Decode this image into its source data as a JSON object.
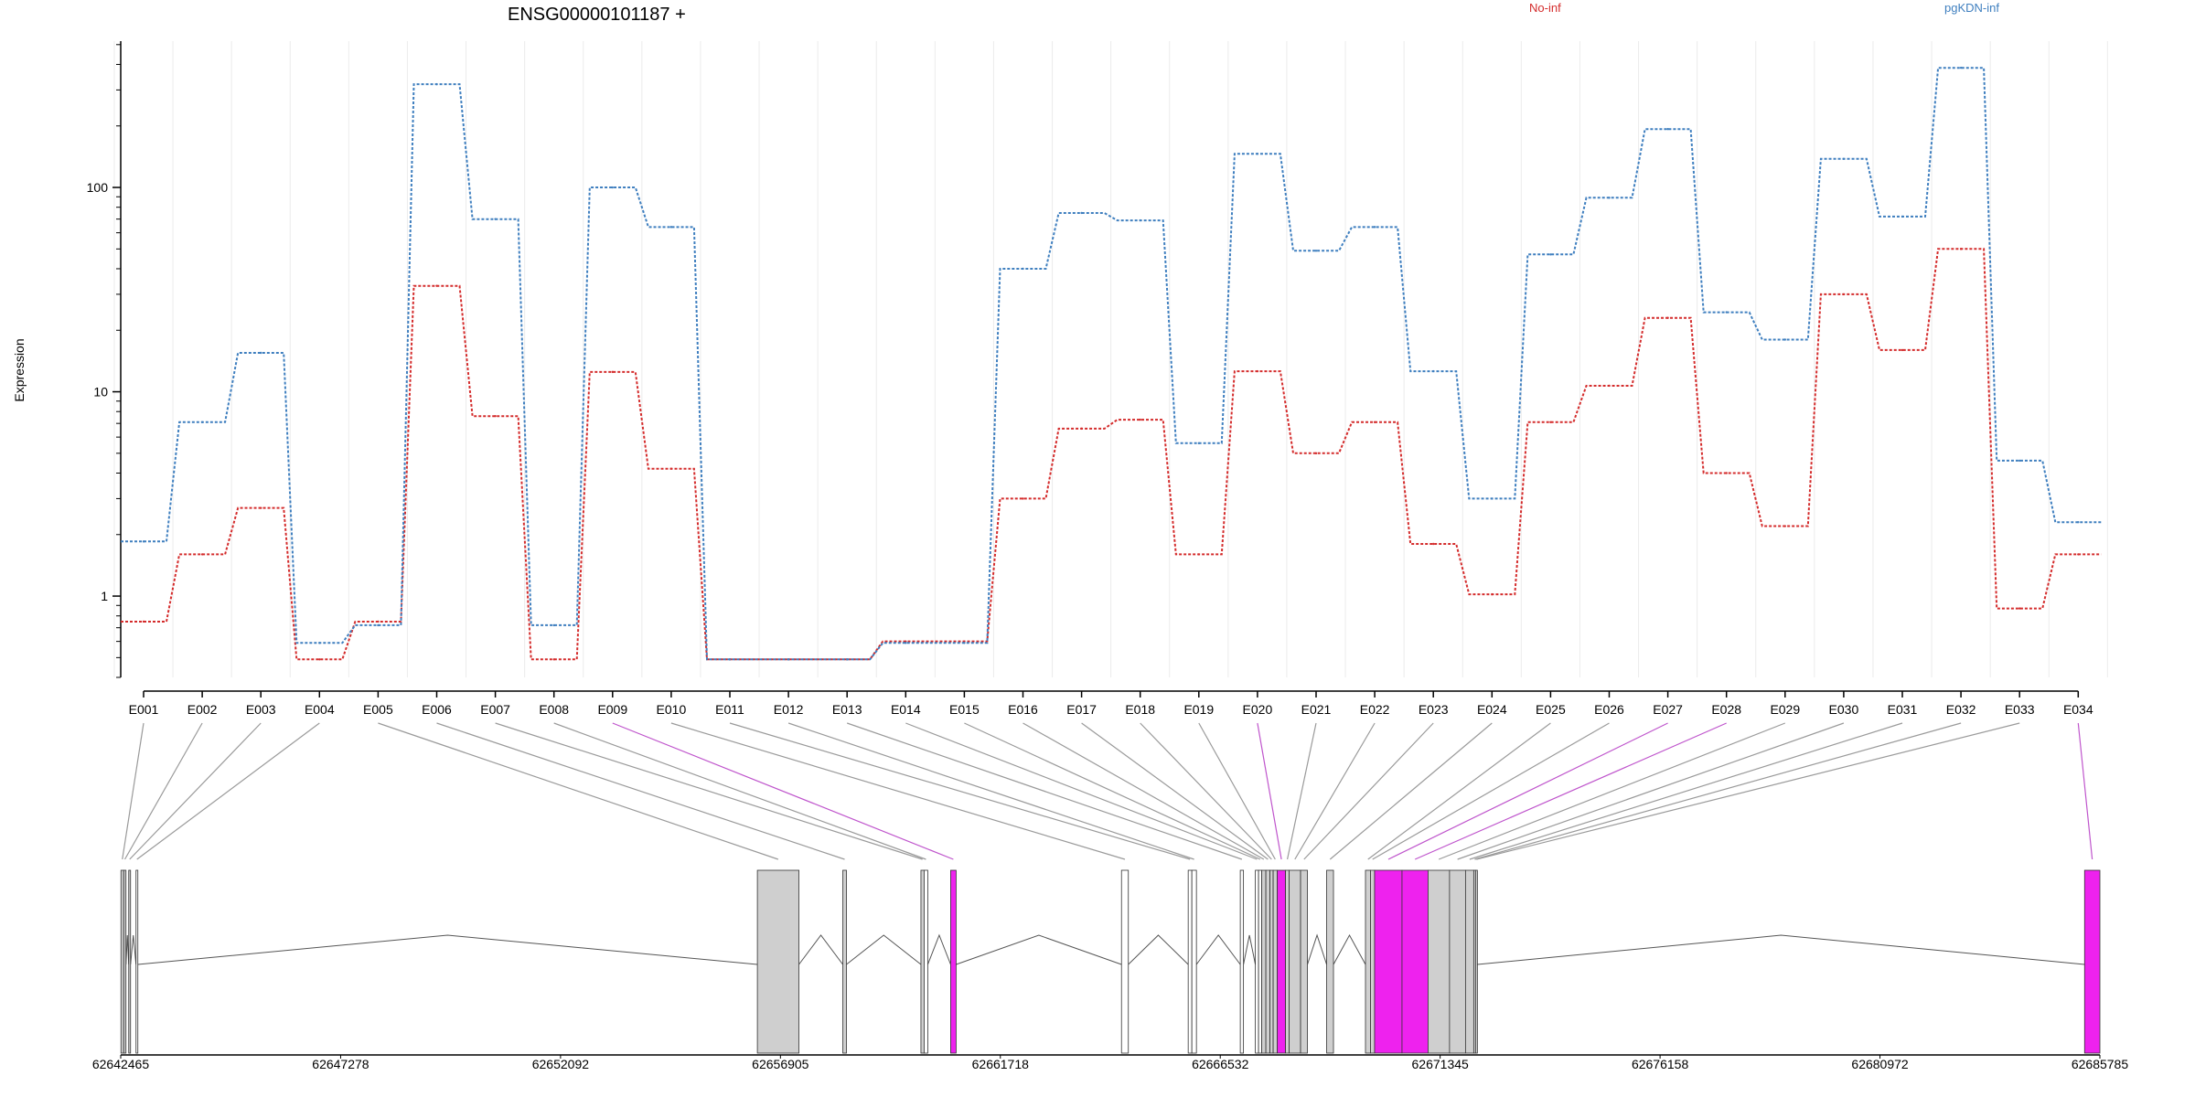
{
  "chart_data": {
    "type": "line",
    "title": "ENSG00000101187 +",
    "ylabel": "Expression",
    "yscale": "log",
    "ylim": [
      0.4,
      520
    ],
    "yticks": [
      {
        "value": 1,
        "label": "1"
      },
      {
        "value": 10,
        "label": "10"
      },
      {
        "value": 100,
        "label": "100"
      }
    ],
    "grid": "vertical",
    "legend_placement": "top-right",
    "categories": [
      "E001",
      "E002",
      "E003",
      "E004",
      "E005",
      "E006",
      "E007",
      "E008",
      "E009",
      "E010",
      "E011",
      "E012",
      "E013",
      "E014",
      "E015",
      "E016",
      "E017",
      "E018",
      "E019",
      "E020",
      "E021",
      "E022",
      "E023",
      "E024",
      "E025",
      "E026",
      "E027",
      "E028",
      "E029",
      "E030",
      "E031",
      "E032",
      "E033",
      "E034"
    ],
    "series": [
      {
        "name": "No-inf",
        "color": "#d42c2c",
        "values": [
          0.75,
          1.6,
          2.7,
          0.49,
          0.75,
          33,
          7.6,
          0.49,
          12.5,
          4.2,
          0.49,
          0.49,
          0.49,
          0.6,
          0.6,
          3.0,
          6.6,
          7.3,
          1.6,
          12.6,
          5.0,
          7.1,
          1.8,
          1.02,
          7.1,
          10.7,
          23,
          4.0,
          2.2,
          30,
          16,
          50,
          0.87,
          1.6
        ]
      },
      {
        "name": "pgKDN-inf",
        "color": "#3f7fbf",
        "values": [
          1.85,
          7.1,
          15.5,
          0.59,
          0.72,
          320,
          70,
          0.72,
          100,
          64,
          0.49,
          0.49,
          0.49,
          0.59,
          0.59,
          40,
          75,
          69,
          5.6,
          146,
          49,
          64,
          12.6,
          3.0,
          47,
          89,
          193,
          24.5,
          18,
          138,
          72,
          385,
          4.6,
          2.3
        ]
      }
    ],
    "gene_model": {
      "xlim": [
        62642465,
        62685785
      ],
      "tick_labels": [
        "62642465",
        "62647278",
        "62652092",
        "62656905",
        "62661718",
        "62666532",
        "62671345",
        "62676158",
        "62680972",
        "62685785"
      ],
      "exons": [
        {
          "id": "E001",
          "start": 62642470,
          "end": 62642530,
          "highlight": false,
          "fill": "#cfcfcf"
        },
        {
          "id": "E002",
          "start": 62642530,
          "end": 62642580,
          "highlight": false,
          "fill": "#cfcfcf"
        },
        {
          "id": "E003",
          "start": 62642640,
          "end": 62642680,
          "highlight": false,
          "fill": "#cfcfcf"
        },
        {
          "id": "E004",
          "start": 62642800,
          "end": 62642840,
          "highlight": false,
          "fill": "#ffffff"
        },
        {
          "id": "E005",
          "start": 62656400,
          "end": 62657310,
          "highlight": false,
          "fill": "#cfcfcf"
        },
        {
          "id": "E006",
          "start": 62658270,
          "end": 62658350,
          "highlight": false,
          "fill": "#cfcfcf"
        },
        {
          "id": "E007",
          "start": 62659980,
          "end": 62660050,
          "highlight": false,
          "fill": "#cfcfcf"
        },
        {
          "id": "E008",
          "start": 62660050,
          "end": 62660130,
          "highlight": false,
          "fill": "#ffffff"
        },
        {
          "id": "E009",
          "start": 62660630,
          "end": 62660750,
          "highlight": true,
          "fill": "#ee22ee"
        },
        {
          "id": "E010",
          "start": 62664370,
          "end": 62664520,
          "highlight": false,
          "fill": "#ffffff"
        },
        {
          "id": "E011",
          "start": 62665830,
          "end": 62665910,
          "highlight": false,
          "fill": "#ffffff"
        },
        {
          "id": "E012",
          "start": 62665910,
          "end": 62666010,
          "highlight": false,
          "fill": "#ffffff"
        },
        {
          "id": "E013",
          "start": 62666970,
          "end": 62667040,
          "highlight": false,
          "fill": "#ffffff"
        },
        {
          "id": "E014",
          "start": 62667300,
          "end": 62667370,
          "highlight": false,
          "fill": "#ffffff"
        },
        {
          "id": "E015",
          "start": 62667370,
          "end": 62667440,
          "highlight": false,
          "fill": "#ffffff"
        },
        {
          "id": "E016",
          "start": 62667440,
          "end": 62667530,
          "highlight": false,
          "fill": "#cfcfcf"
        },
        {
          "id": "E017",
          "start": 62667530,
          "end": 62667620,
          "highlight": false,
          "fill": "#cfcfcf"
        },
        {
          "id": "E018",
          "start": 62667620,
          "end": 62667690,
          "highlight": false,
          "fill": "#cfcfcf"
        },
        {
          "id": "E019",
          "start": 62667690,
          "end": 62667780,
          "highlight": false,
          "fill": "#cfcfcf"
        },
        {
          "id": "E020",
          "start": 62667780,
          "end": 62667960,
          "highlight": true,
          "fill": "#ee22ee"
        },
        {
          "id": "E021",
          "start": 62667960,
          "end": 62668040,
          "highlight": false,
          "fill": "#cfcfcf"
        },
        {
          "id": "E022",
          "start": 62668040,
          "end": 62668290,
          "highlight": false,
          "fill": "#cfcfcf"
        },
        {
          "id": "E023",
          "start": 62668290,
          "end": 62668440,
          "highlight": false,
          "fill": "#cfcfcf"
        },
        {
          "id": "E024",
          "start": 62668860,
          "end": 62669010,
          "highlight": false,
          "fill": "#cfcfcf"
        },
        {
          "id": "E025",
          "start": 62669710,
          "end": 62669820,
          "highlight": false,
          "fill": "#cfcfcf"
        },
        {
          "id": "E026",
          "start": 62669820,
          "end": 62669910,
          "highlight": false,
          "fill": "#cfcfcf"
        },
        {
          "id": "E027",
          "start": 62669910,
          "end": 62670510,
          "highlight": true,
          "fill": "#ee22ee"
        },
        {
          "id": "E028",
          "start": 62670510,
          "end": 62671080,
          "highlight": true,
          "fill": "#ee22ee"
        },
        {
          "id": "E029",
          "start": 62671080,
          "end": 62671550,
          "highlight": false,
          "fill": "#cfcfcf"
        },
        {
          "id": "E030",
          "start": 62671550,
          "end": 62671900,
          "highlight": false,
          "fill": "#cfcfcf"
        },
        {
          "id": "E031",
          "start": 62671900,
          "end": 62672080,
          "highlight": false,
          "fill": "#cfcfcf"
        },
        {
          "id": "E032",
          "start": 62672080,
          "end": 62672120,
          "highlight": false,
          "fill": "#cfcfcf"
        },
        {
          "id": "E033",
          "start": 62672120,
          "end": 62672160,
          "highlight": false,
          "fill": "#cfcfcf"
        },
        {
          "id": "E034",
          "start": 62685450,
          "end": 62685785,
          "highlight": true,
          "fill": "#ee22ee"
        }
      ]
    }
  }
}
